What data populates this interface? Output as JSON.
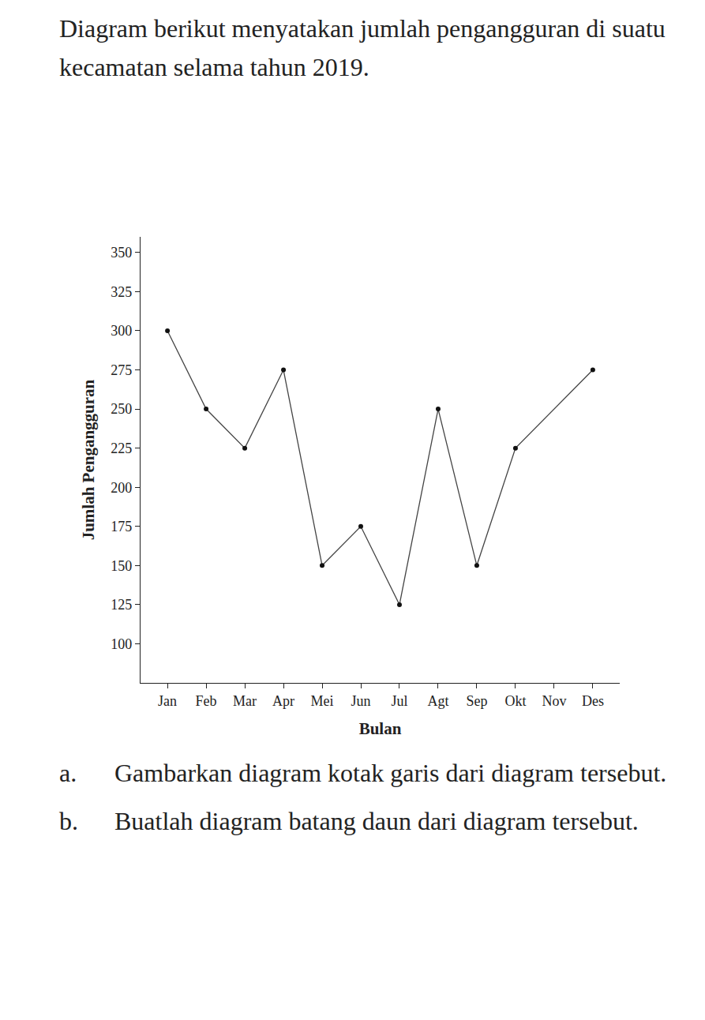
{
  "question": {
    "intro": "Diagram berikut menyatakan jumlah pengangguran di suatu kecamatan selama tahun 2019.",
    "items": [
      {
        "label": "a.",
        "text": "Gambarkan diagram kotak garis dari diagram tersebut."
      },
      {
        "label": "b.",
        "text": "Buatlah diagram batang daun dari diagram tersebut."
      }
    ]
  },
  "chart_data": {
    "type": "line",
    "x_label": "Bulan",
    "y_label": "Jumlah Pengangguran",
    "categories": [
      "Jan",
      "Feb",
      "Mar",
      "Apr",
      "Mei",
      "Jun",
      "Jul",
      "Agt",
      "Sep",
      "Okt",
      "Nov",
      "Des"
    ],
    "values": [
      300,
      250,
      225,
      275,
      150,
      175,
      125,
      250,
      150,
      225,
      null,
      275
    ],
    "color": "#444444",
    "marker": "circle",
    "ylim": [
      75,
      360
    ],
    "yticks": [
      100,
      125,
      150,
      175,
      200,
      225,
      250,
      275,
      300,
      325,
      350
    ],
    "grid": false
  }
}
